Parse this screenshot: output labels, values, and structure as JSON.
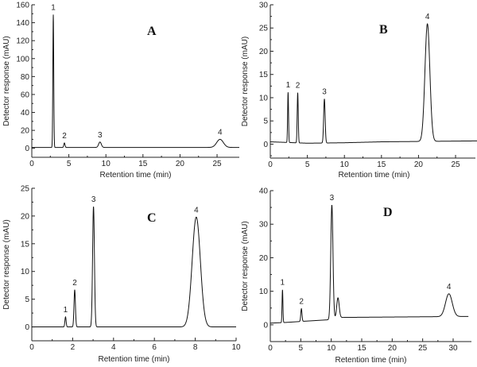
{
  "chart_data": [
    {
      "type": "line",
      "panel": "A",
      "xlabel": "Retention time (min)",
      "ylabel": "Detector response (mAU)",
      "xlim": [
        0,
        28
      ],
      "ylim": [
        -10,
        160
      ],
      "xticks": [
        0,
        5,
        10,
        15,
        20,
        25
      ],
      "yticks": [
        0,
        20,
        40,
        60,
        80,
        100,
        120,
        140,
        160
      ],
      "baseline": [
        [
          0,
          1
        ],
        [
          28,
          1
        ]
      ],
      "peaks": [
        {
          "label": "1",
          "rt": 2.9,
          "height": 148,
          "width": 0.06
        },
        {
          "label": "2",
          "rt": 4.4,
          "height": 5,
          "width": 0.08
        },
        {
          "label": "3",
          "rt": 9.2,
          "height": 6,
          "width": 0.18
        },
        {
          "label": "4",
          "rt": 25.4,
          "height": 9,
          "width": 0.45
        }
      ]
    },
    {
      "type": "line",
      "panel": "B",
      "xlabel": "Retention time (min)",
      "ylabel": "Detector response (mAU)",
      "xlim": [
        0,
        28
      ],
      "ylim": [
        -3,
        30
      ],
      "xticks": [
        0,
        5,
        10,
        15,
        20,
        25
      ],
      "yticks": [
        0,
        5,
        10,
        15,
        20,
        25,
        30
      ],
      "baseline": [
        [
          0,
          0.5
        ],
        [
          5,
          0.2
        ],
        [
          10,
          0.3
        ],
        [
          15,
          0.5
        ],
        [
          28,
          0.7
        ]
      ],
      "peaks": [
        {
          "label": "1",
          "rt": 2.4,
          "height": 10.8,
          "width": 0.06
        },
        {
          "label": "2",
          "rt": 3.7,
          "height": 10.8,
          "width": 0.07
        },
        {
          "label": "3",
          "rt": 7.3,
          "height": 9.5,
          "width": 0.1
        },
        {
          "label": "4",
          "rt": 21.2,
          "height": 25.3,
          "width": 0.33
        }
      ]
    },
    {
      "type": "line",
      "panel": "C",
      "xlabel": "Retention time (min)",
      "ylabel": "Detector response (mAU)",
      "xlim": [
        0,
        10
      ],
      "ylim": [
        -2.5,
        25
      ],
      "xticks": [
        0,
        2,
        4,
        6,
        8,
        10
      ],
      "yticks": [
        0,
        5,
        10,
        15,
        20,
        25
      ],
      "baseline": [
        [
          0,
          0
        ],
        [
          10,
          0
        ]
      ],
      "peaks": [
        {
          "label": "1",
          "rt": 1.65,
          "height": 1.8,
          "width": 0.03
        },
        {
          "label": "2",
          "rt": 2.1,
          "height": 6.7,
          "width": 0.035
        },
        {
          "label": "3",
          "rt": 3.02,
          "height": 21.7,
          "width": 0.045
        },
        {
          "label": "4",
          "rt": 8.05,
          "height": 19.8,
          "width": 0.2
        }
      ]
    },
    {
      "type": "line",
      "panel": "D",
      "xlabel": "Retention time (min)",
      "ylabel": "Detector response (mAU)",
      "xlim": [
        0,
        33
      ],
      "ylim": [
        -5,
        40
      ],
      "xticks": [
        0,
        5,
        10,
        15,
        20,
        25,
        30
      ],
      "yticks": [
        0,
        10,
        20,
        30,
        40
      ],
      "baseline": [
        [
          0,
          0.5
        ],
        [
          2.5,
          0.7
        ],
        [
          5,
          1
        ],
        [
          9.5,
          1.5
        ],
        [
          11.5,
          2.2
        ],
        [
          32.5,
          2.5
        ]
      ],
      "peaks": [
        {
          "label": "1",
          "rt": 2.0,
          "height": 9.8,
          "width": 0.07
        },
        {
          "label": "2",
          "rt": 5.1,
          "height": 3.8,
          "width": 0.1
        },
        {
          "label": "3",
          "rt": 10.1,
          "height": 34,
          "width": 0.18
        },
        {
          "label": "",
          "rt": 11.1,
          "height": 6,
          "width": 0.2
        },
        {
          "label": "4",
          "rt": 29.3,
          "height": 6.8,
          "width": 0.55
        }
      ]
    }
  ]
}
